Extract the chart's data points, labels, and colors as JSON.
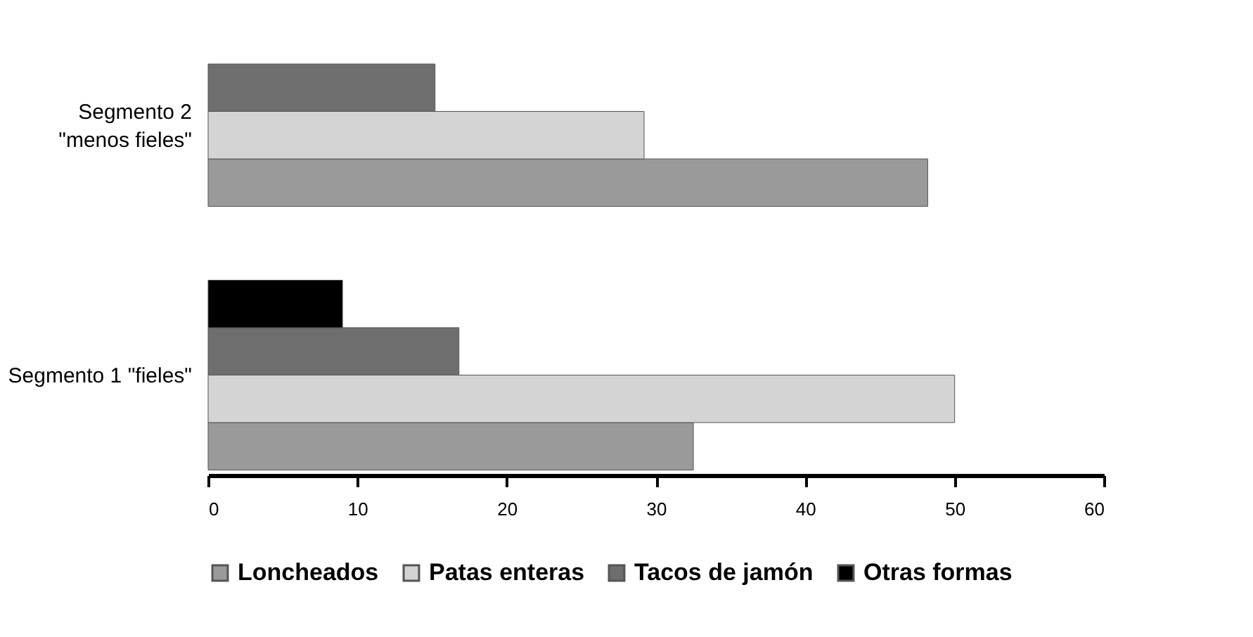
{
  "chart_data": {
    "type": "bar",
    "orientation": "horizontal",
    "categories": [
      "Segmento 2\n\"menos fieles\"",
      "Segmento 1 \"fieles\""
    ],
    "series": [
      {
        "name": "Loncheados",
        "color": "#9a9a9a",
        "values": [
          48.2,
          32.5
        ]
      },
      {
        "name": "Patas enteras",
        "color": "#d4d4d4",
        "values": [
          29.2,
          50
        ]
      },
      {
        "name": "Tacos de jamón",
        "color": "#6e6e6e",
        "values": [
          15.2,
          16.8
        ]
      },
      {
        "name": "Otras formas",
        "color": "#000000",
        "values": [
          null,
          9
        ]
      }
    ],
    "xlim": [
      0,
      60
    ],
    "xticks": [
      0,
      10,
      20,
      30,
      40,
      50,
      60
    ],
    "grid": false,
    "legend": "bottom"
  }
}
